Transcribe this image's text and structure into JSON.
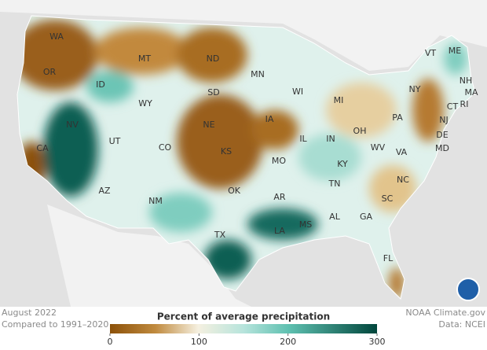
{
  "map": {
    "states": [
      {
        "label": "WA"
      },
      {
        "label": "MT"
      },
      {
        "label": "ND"
      },
      {
        "label": "VT"
      },
      {
        "label": "ME"
      },
      {
        "label": "OR"
      },
      {
        "label": "MN"
      },
      {
        "label": "NH"
      },
      {
        "label": "ID"
      },
      {
        "label": "SD"
      },
      {
        "label": "WI"
      },
      {
        "label": "MI"
      },
      {
        "label": "NY"
      },
      {
        "label": "MA"
      },
      {
        "label": "WY"
      },
      {
        "label": "CT"
      },
      {
        "label": "RI"
      },
      {
        "label": "PA"
      },
      {
        "label": "NJ"
      },
      {
        "label": "IA"
      },
      {
        "label": "NE"
      },
      {
        "label": "OH"
      },
      {
        "label": "NV"
      },
      {
        "label": "DE"
      },
      {
        "label": "IL"
      },
      {
        "label": "IN"
      },
      {
        "label": "UT"
      },
      {
        "label": "MD"
      },
      {
        "label": "CA"
      },
      {
        "label": "CO"
      },
      {
        "label": "KS"
      },
      {
        "label": "WV"
      },
      {
        "label": "VA"
      },
      {
        "label": "MO"
      },
      {
        "label": "KY"
      },
      {
        "label": "NC"
      },
      {
        "label": "TN"
      },
      {
        "label": "AR"
      },
      {
        "label": "OK"
      },
      {
        "label": "AZ"
      },
      {
        "label": "NM"
      },
      {
        "label": "SC"
      },
      {
        "label": "GA"
      },
      {
        "label": "AL"
      },
      {
        "label": "MS"
      },
      {
        "label": "TX"
      },
      {
        "label": "LA"
      },
      {
        "label": "FL"
      }
    ]
  },
  "legend": {
    "title": "Percent of average precipitation",
    "range": [
      0,
      300
    ],
    "ticks": [
      0,
      100,
      200,
      300
    ]
  },
  "footer": {
    "date": "August 2022",
    "baseline": "Compared to 1991–2020",
    "credit": "NOAA Climate.gov",
    "source": "Data: NCEI"
  }
}
